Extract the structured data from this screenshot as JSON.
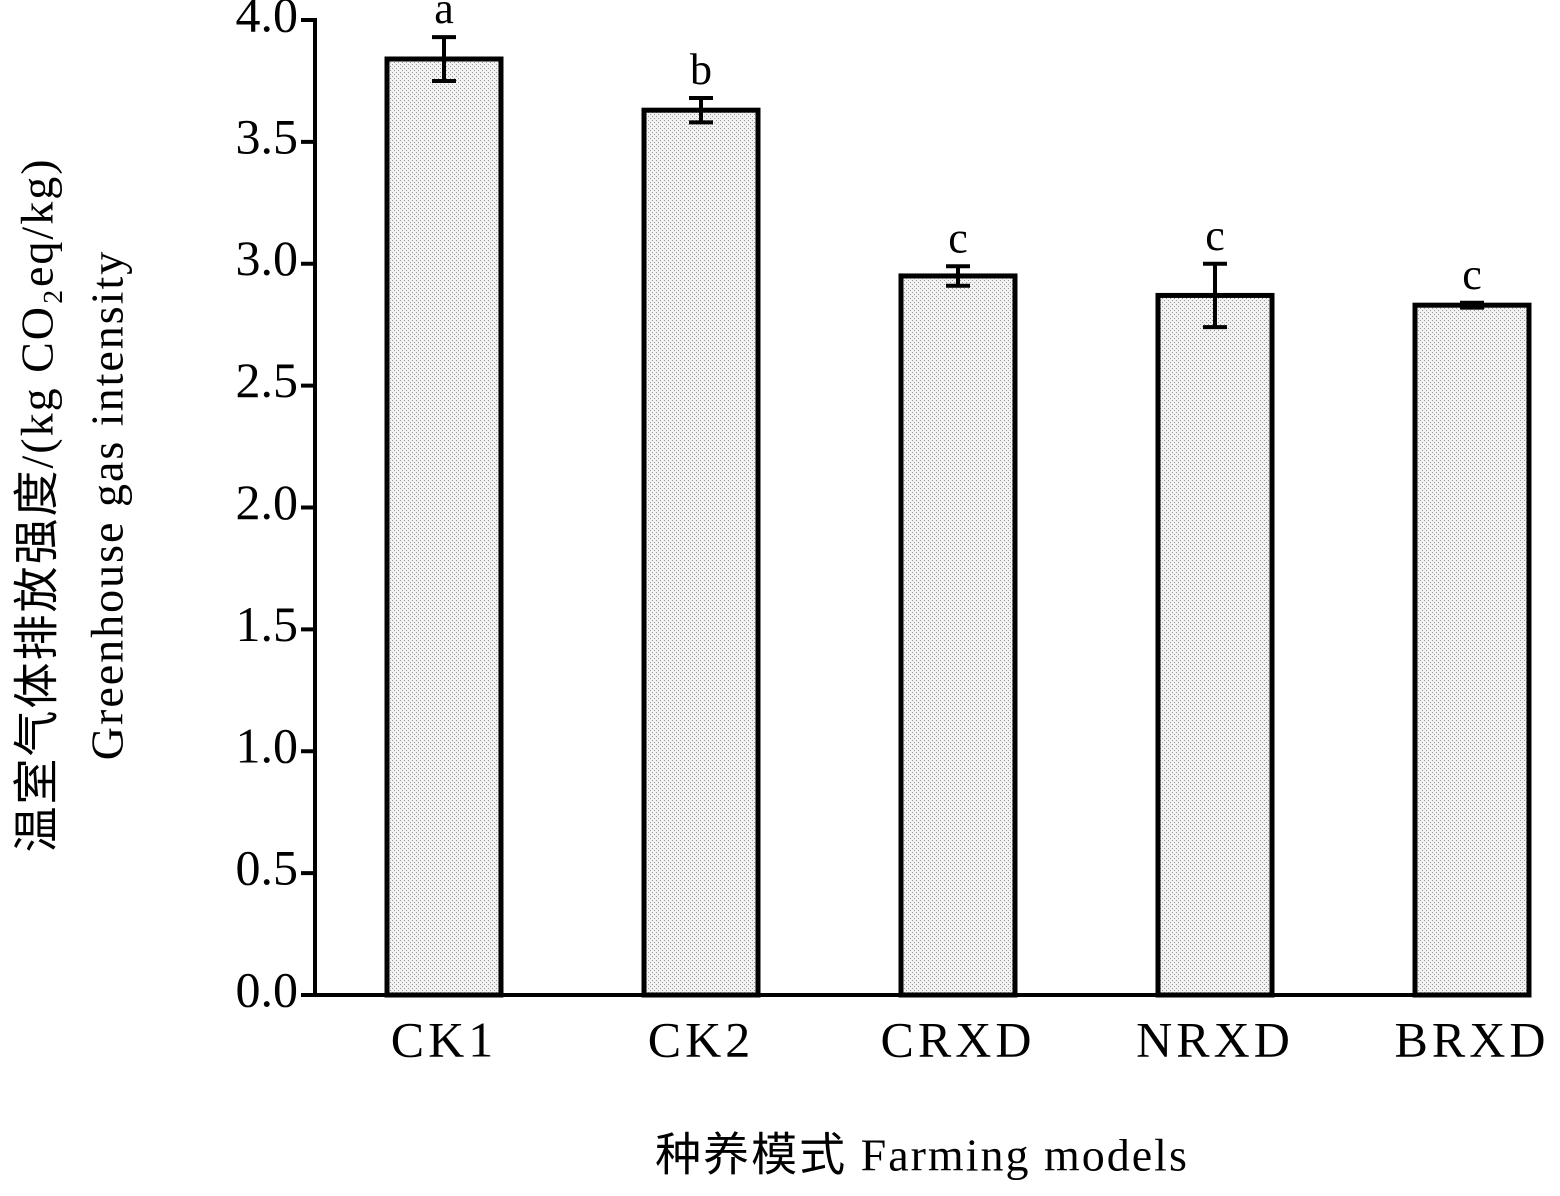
{
  "chart_data": {
    "type": "bar",
    "y_label_cn": "温室气体排放强度/(kg CO₂eq/kg)",
    "y_label_en": "Greenhouse gas intensity",
    "x_label": "种养模式 Farming models",
    "categories": [
      "CK1",
      "CK2",
      "CRXD",
      "NRXD",
      "BRXD"
    ],
    "values": [
      3.84,
      3.63,
      2.95,
      2.87,
      2.83
    ],
    "errors": [
      0.09,
      0.05,
      0.04,
      0.13,
      0.01
    ],
    "significance_letters": [
      "a",
      "b",
      "c",
      "c",
      "c"
    ],
    "color": "#e4e4e4",
    "ylim": [
      0,
      4
    ],
    "yticks": [
      {
        "value": 0,
        "label": "0.0"
      },
      0.5,
      {
        "value": 1,
        "label": "1.0"
      },
      1.5,
      {
        "value": 2,
        "label": "2.0"
      },
      2.5,
      {
        "value": 3,
        "label": "3.0"
      },
      3.5,
      {
        "value": 4,
        "label": "4.0"
      }
    ],
    "grid": false
  }
}
